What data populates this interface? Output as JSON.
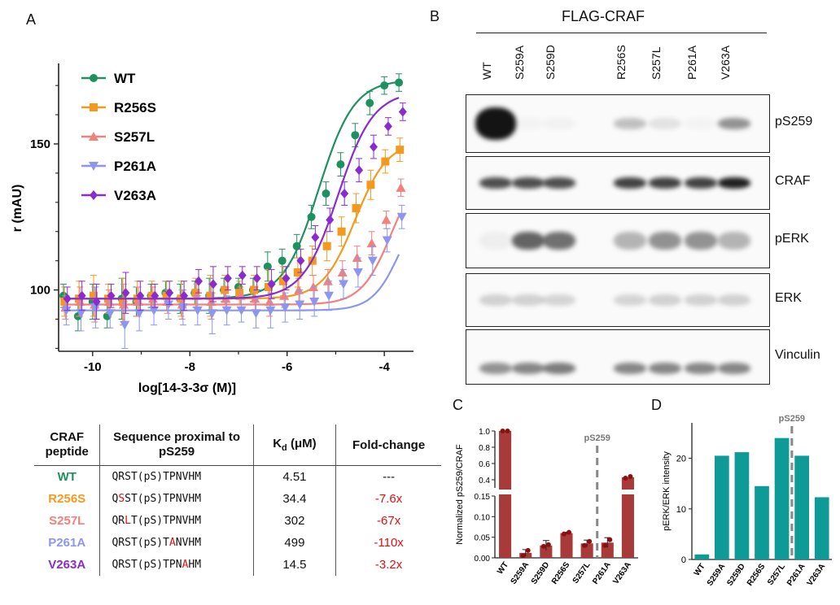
{
  "panels": {
    "a": "A",
    "b": "B",
    "c": "C",
    "d": "D"
  },
  "panel_a": {
    "ylabel": "r (mAU)",
    "xlabel": "log[14-3-3σ (M)]",
    "legend": [
      {
        "name": "WT",
        "color": "#1e9160",
        "marker": "circle"
      },
      {
        "name": "R256S",
        "color": "#f39a1e",
        "marker": "square"
      },
      {
        "name": "S257L",
        "color": "#f2807c",
        "marker": "triangle-up"
      },
      {
        "name": "P261A",
        "color": "#8c96f0",
        "marker": "triangle-down"
      },
      {
        "name": "V263A",
        "color": "#8a2bd0",
        "marker": "diamond"
      }
    ]
  },
  "table": {
    "headers": [
      "CRAF peptide",
      "Sequence proximal to pS259",
      "Kd (μM)",
      "Fold-change"
    ],
    "header_sub": {
      "kd_main": "K",
      "kd_sub": "d",
      "kd_rest": " (μM)"
    },
    "rows": [
      {
        "peptide": "WT",
        "color": "#1e9160",
        "seq_pre": "QRST(pS)TPNVHM",
        "seq_mut": "",
        "seq_post": "",
        "kd": "4.51",
        "fold": "---",
        "fold_red": false
      },
      {
        "peptide": "R256S",
        "color": "#f39a1e",
        "seq_pre": "Q",
        "seq_mut": "S",
        "seq_post": "ST(pS)TPNVHM",
        "kd": "34.4",
        "fold": "-7.6x",
        "fold_red": true
      },
      {
        "peptide": "S257L",
        "color": "#f2807c",
        "seq_pre": "QR",
        "seq_mut": "L",
        "seq_post": "T(pS)TPNVHM",
        "kd": "302",
        "fold": "-67x",
        "fold_red": true
      },
      {
        "peptide": "P261A",
        "color": "#8c96f0",
        "seq_pre": "QRST(pS)T",
        "seq_mut": "A",
        "seq_post": "NVHM",
        "kd": "499",
        "fold": "-110x",
        "fold_red": true
      },
      {
        "peptide": "V263A",
        "color": "#8a2bd0",
        "seq_pre": "QRST(pS)TPN",
        "seq_mut": "A",
        "seq_post": "HM",
        "kd": "14.5",
        "fold": "-3.2x",
        "fold_red": true
      }
    ]
  },
  "panel_b": {
    "title": "FLAG-CRAF",
    "lanes": [
      "WT",
      "S259A",
      "S259D",
      "R256S",
      "S257L",
      "P261A",
      "V263A"
    ],
    "blots": [
      "pS259",
      "CRAF",
      "pERK",
      "ERK",
      "Vinculin"
    ]
  },
  "chart_data": [
    {
      "type": "scatter",
      "title": "",
      "xlabel": "log[14-3-3σ (M)]",
      "ylabel": "r (mAU)",
      "xlim": [
        -10.7,
        -3.4
      ],
      "ylim": [
        79,
        177
      ],
      "xticks": [
        -10,
        -8,
        -6,
        -4
      ],
      "yticks": [
        100,
        150
      ],
      "legend_position": "top-left",
      "grid": false,
      "x": [
        -10.6,
        -10.3,
        -10.0,
        -9.7,
        -9.4,
        -9.1,
        -8.8,
        -8.5,
        -8.2,
        -7.9,
        -7.6,
        -7.3,
        -7.0,
        -6.7,
        -6.4,
        -6.1,
        -5.8,
        -5.5,
        -5.2,
        -4.9,
        -4.6,
        -4.3,
        -4.0,
        -3.7
      ],
      "series": [
        {
          "name": "WT",
          "color": "#1e9160",
          "ec50": -5.35,
          "bottom": 97,
          "top": 172,
          "hill": 1.2,
          "values": [
            98,
            91,
            96,
            91,
            97,
            96,
            98,
            99,
            97,
            99,
            98,
            100,
            101,
            100,
            108,
            110,
            115,
            125,
            133,
            143,
            153,
            164,
            170,
            171
          ]
        },
        {
          "name": "R256S",
          "color": "#f39a1e",
          "ec50": -4.6,
          "bottom": 97,
          "top": 151,
          "hill": 1.3,
          "values": [
            96,
            97,
            98,
            97,
            96,
            97,
            98,
            98,
            97,
            99,
            98,
            100,
            99,
            100,
            101,
            103,
            106,
            110,
            115,
            120,
            128,
            136,
            144,
            148
          ]
        },
        {
          "name": "S257L",
          "color": "#f2807c",
          "ec50": -3.85,
          "bottom": 95,
          "top": 144,
          "hill": 1.4,
          "values": [
            94,
            96,
            95,
            96,
            95,
            96,
            97,
            96,
            95,
            98,
            96,
            97,
            98,
            97,
            96,
            98,
            100,
            101,
            103,
            106,
            111,
            116,
            124,
            135
          ]
        },
        {
          "name": "P261A",
          "color": "#8c96f0",
          "ec50": -3.65,
          "bottom": 93,
          "top": 135,
          "hill": 1.5,
          "values": [
            93,
            92,
            94,
            92,
            88,
            92,
            93,
            95,
            94,
            93,
            92,
            93,
            93,
            92,
            93,
            94,
            95,
            96,
            98,
            102,
            106,
            110,
            117,
            125
          ]
        },
        {
          "name": "V263A",
          "color": "#8a2bd0",
          "ec50": -4.95,
          "bottom": 97,
          "top": 168,
          "hill": 1.2,
          "values": [
            97,
            98,
            96,
            98,
            99,
            98,
            98,
            99,
            98,
            103,
            102,
            104,
            105,
            104,
            102,
            104,
            110,
            118,
            124,
            133,
            141,
            149,
            156,
            161
          ]
        }
      ]
    },
    {
      "type": "bar",
      "title": "",
      "ylabel": "Normalized pS259/CRAF",
      "annotation": "pS259",
      "color": "#a83a3a",
      "categories": [
        "WT",
        "S259A",
        "S259D",
        "R256S",
        "S257L",
        "P261A",
        "V263A"
      ],
      "values": [
        1.0,
        0.012,
        0.03,
        0.06,
        0.035,
        0.037,
        0.43
      ],
      "points": [
        [
          1.0,
          1.0
        ],
        [
          0.005,
          0.018
        ],
        [
          0.028,
          0.032
        ],
        [
          0.058,
          0.062
        ],
        [
          0.03,
          0.04
        ],
        [
          0.03,
          0.044
        ],
        [
          0.42,
          0.44
        ]
      ],
      "errors": [
        0,
        0.008,
        0.012,
        0.002,
        0.008,
        0.012,
        0.02
      ],
      "ylim_lower": [
        0,
        0.15
      ],
      "ylim_upper": [
        0.3,
        1.0
      ],
      "yticks_lower": [
        "0.00",
        "0.05",
        "0.10",
        "0.15"
      ],
      "yticks_upper": [
        "0.4",
        "0.6",
        "0.8",
        "1.0"
      ]
    },
    {
      "type": "bar",
      "title": "",
      "ylabel": "pERK/ERK intensity",
      "annotation": "pS259",
      "color": "#0e9a96",
      "categories": [
        "WT",
        "S259A",
        "S259D",
        "R256S",
        "S257L",
        "P261A",
        "V263A"
      ],
      "values": [
        1,
        20.5,
        21.2,
        14.5,
        24,
        20.5,
        12.3
      ],
      "ylim": [
        0,
        27
      ],
      "yticks": [
        "0",
        "10",
        "20"
      ]
    }
  ]
}
